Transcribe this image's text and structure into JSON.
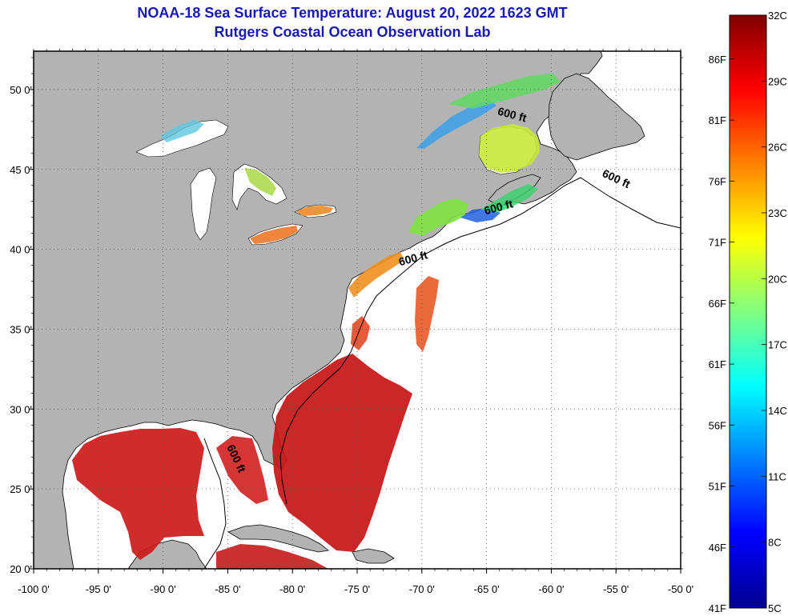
{
  "title": {
    "line1": "NOAA-18 Sea Surface Temperature:  August 20, 2022 1623 GMT",
    "line2": "Rutgers Coastal Ocean Observation Lab"
  },
  "map": {
    "lon_range": [
      -100,
      -50
    ],
    "lat_range": [
      20,
      52.4
    ],
    "lon_ticks": [
      {
        "value": -100,
        "label": "-100 0'"
      },
      {
        "value": -95,
        "label": "-95 0'"
      },
      {
        "value": -90,
        "label": "-90 0'"
      },
      {
        "value": -85,
        "label": "-85 0'"
      },
      {
        "value": -80,
        "label": "-80 0'"
      },
      {
        "value": -75,
        "label": "-75 0'"
      },
      {
        "value": -70,
        "label": "-70 0'"
      },
      {
        "value": -65,
        "label": "-65 0'"
      },
      {
        "value": -60,
        "label": "-60 0'"
      },
      {
        "value": -55,
        "label": "-55 0'"
      },
      {
        "value": -50,
        "label": "-50 0'"
      }
    ],
    "lat_ticks": [
      {
        "value": 50,
        "label": "50 0'"
      },
      {
        "value": 45,
        "label": "45 0'"
      },
      {
        "value": 40,
        "label": "40 0'"
      },
      {
        "value": 35,
        "label": "35 0'"
      },
      {
        "value": 30,
        "label": "30 0'"
      },
      {
        "value": 25,
        "label": "25 0'"
      },
      {
        "value": 20,
        "label": "20 0'"
      }
    ],
    "isobath_labels": [
      {
        "text": "600 ft",
        "lon": -63.1,
        "lat": 48.2,
        "angle": 15
      },
      {
        "text": "600 ft",
        "lon": -55.1,
        "lat": 44.2,
        "angle": 25
      },
      {
        "text": "600 ft",
        "lon": -64.0,
        "lat": 42.4,
        "angle": -15
      },
      {
        "text": "600 ft",
        "lon": -70.6,
        "lat": 39.2,
        "angle": -15
      },
      {
        "text": "600 ft",
        "lon": -84.6,
        "lat": 26.8,
        "angle": 65
      }
    ],
    "colors": {
      "land": "#b3b3b3",
      "ocean": "#ffffff",
      "grid": "#555555"
    }
  },
  "colorbar": {
    "c_min": 5,
    "c_max": 32,
    "celsius_labels": [
      {
        "value": 32,
        "label": "32C"
      },
      {
        "value": 29,
        "label": "29C"
      },
      {
        "value": 26,
        "label": "26C"
      },
      {
        "value": 23,
        "label": "23C"
      },
      {
        "value": 20,
        "label": "20C"
      },
      {
        "value": 17,
        "label": "17C"
      },
      {
        "value": 14,
        "label": "14C"
      },
      {
        "value": 11,
        "label": "11C"
      },
      {
        "value": 8,
        "label": "8C"
      },
      {
        "value": 5,
        "label": "5C"
      }
    ],
    "fahrenheit_labels": [
      {
        "value": 86,
        "label": "86F"
      },
      {
        "value": 81,
        "label": "81F"
      },
      {
        "value": 76,
        "label": "76F"
      },
      {
        "value": 71,
        "label": "71F"
      },
      {
        "value": 66,
        "label": "66F"
      },
      {
        "value": 61,
        "label": "61F"
      },
      {
        "value": 56,
        "label": "56F"
      },
      {
        "value": 51,
        "label": "51F"
      },
      {
        "value": 46,
        "label": "46F"
      },
      {
        "value": 41,
        "label": "41F"
      }
    ],
    "stops": [
      "#00008f",
      "#0000ff",
      "#0080ff",
      "#00ffff",
      "#80ff80",
      "#ffff00",
      "#ff8000",
      "#ff0000",
      "#800000"
    ]
  }
}
